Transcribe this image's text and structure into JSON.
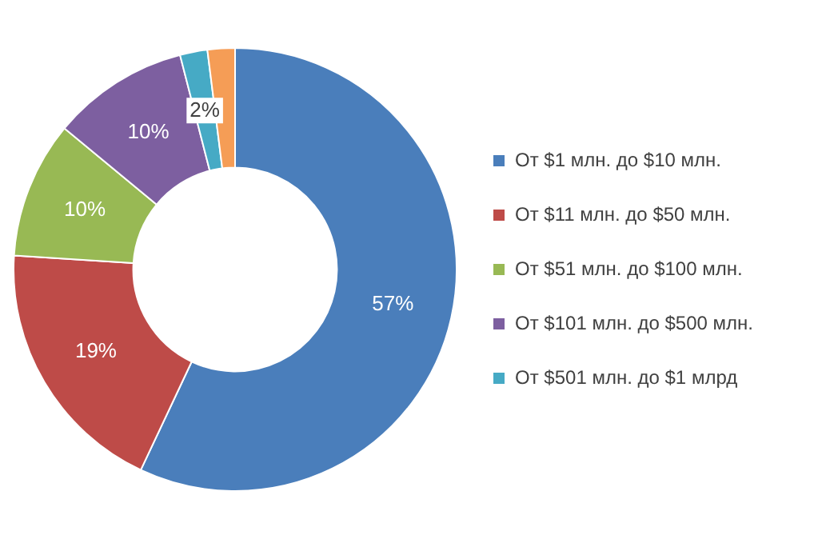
{
  "chart_data": {
    "type": "donut",
    "categories": [
      "От $1 млн. до $10 млн.",
      "От $11 млн. до $50 млн.",
      "От $51 млн. до $100 млн.",
      "От $101 млн. до $500 млн.",
      "От $501 млн. до $1 млрд",
      null
    ],
    "values": [
      57,
      19,
      10,
      10,
      2,
      2
    ],
    "colors": [
      "#4a7ebb",
      "#be4b48",
      "#98b954",
      "#7d5fa0",
      "#46aac5",
      "#f59d56"
    ],
    "value_labels": [
      "57%",
      "19%",
      "10%",
      "10%",
      "2%",
      null
    ],
    "legend": "right"
  }
}
